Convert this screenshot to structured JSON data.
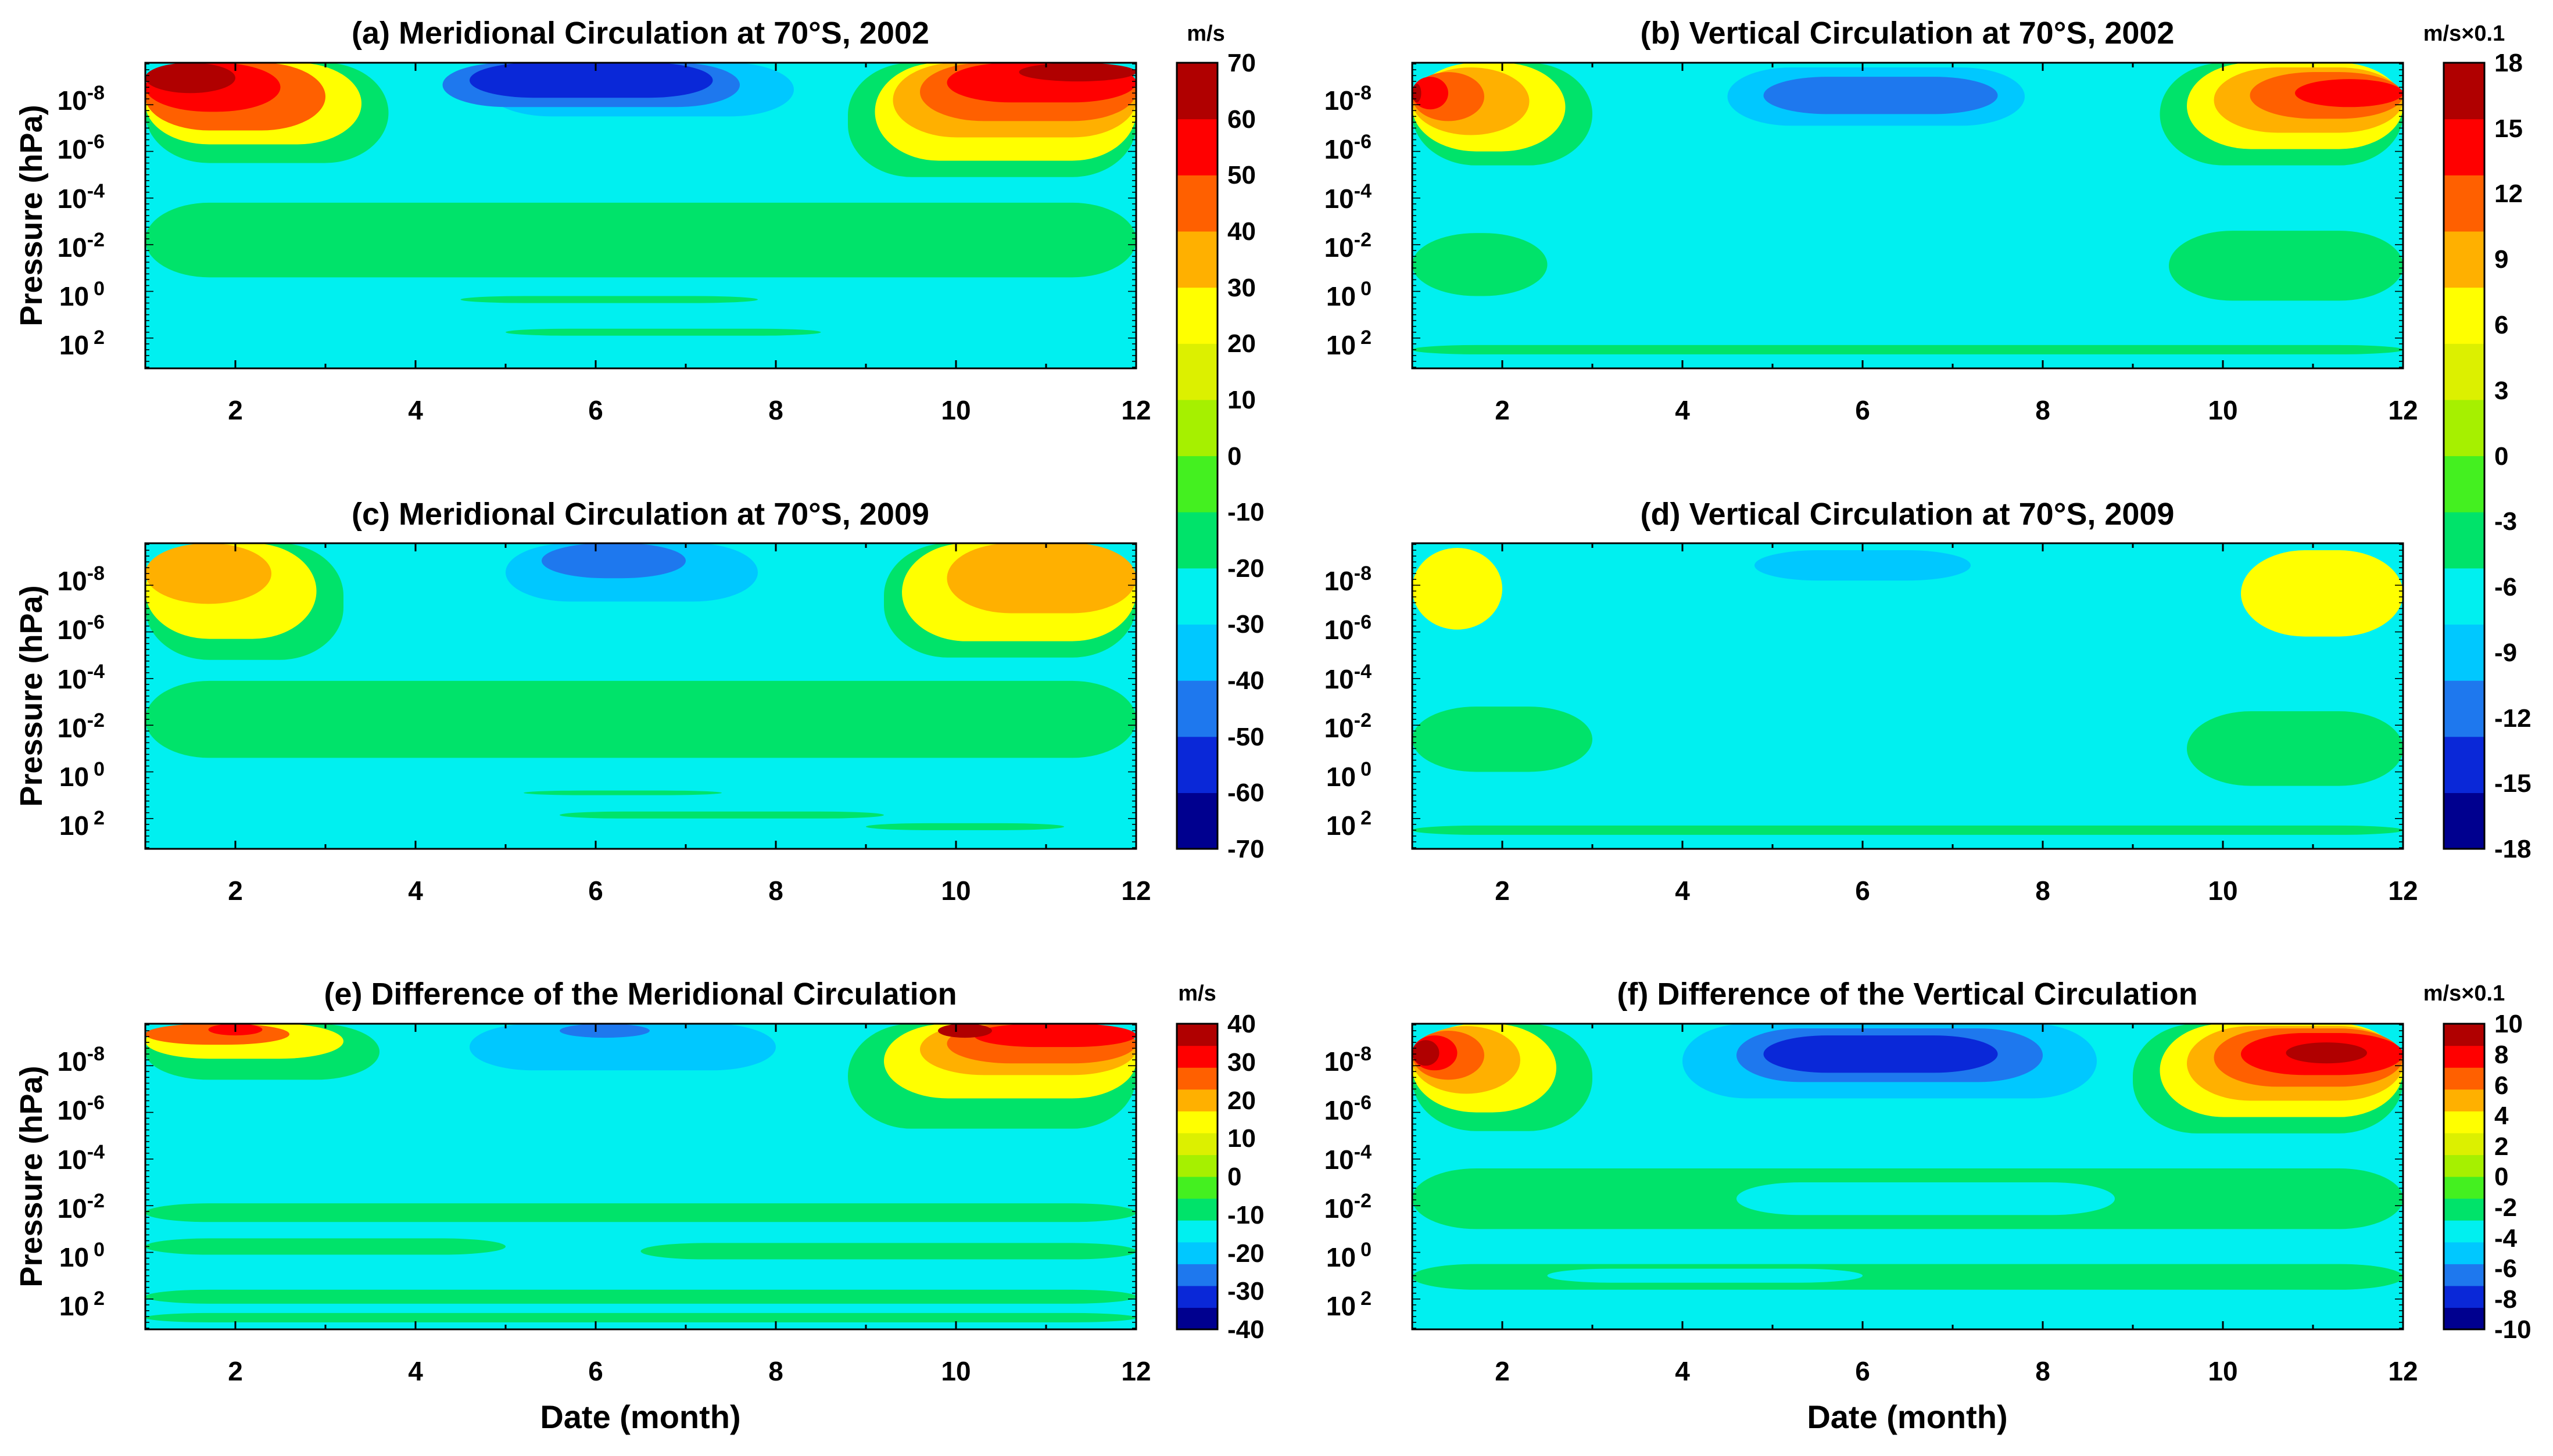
{
  "chart_data": [
    {
      "id": "a",
      "type": "contour",
      "title": "(a) Meridional Circulation at 70°S, 2002",
      "xlabel": "",
      "ylabel": "Pressure (hPa)",
      "x_ticks": [
        "2",
        "4",
        "6",
        "8",
        "10",
        "12"
      ],
      "y_ticks": [
        [
          "10",
          "-8"
        ],
        [
          "10",
          "-6"
        ],
        [
          "10",
          "-4"
        ],
        [
          "10",
          "-2"
        ],
        [
          "10",
          "0"
        ],
        [
          "10",
          "2"
        ]
      ],
      "xlim": [
        1,
        12
      ],
      "colorbar": "cb_meridional",
      "regions": [
        {
          "x0": 1.0,
          "x1": 3.7,
          "y0": -9.8,
          "y1": -5.5,
          "level": 5
        },
        {
          "x0": 1.0,
          "x1": 3.4,
          "y0": -9.8,
          "y1": -6.3,
          "level": 9
        },
        {
          "x0": 1.0,
          "x1": 3.0,
          "y0": -9.8,
          "y1": -6.9,
          "level": 11
        },
        {
          "x0": 1.0,
          "x1": 2.5,
          "y0": -9.8,
          "y1": -7.7,
          "level": 12
        },
        {
          "x0": 1.0,
          "x1": 2.0,
          "y0": -9.8,
          "y1": -8.5,
          "level": 13
        },
        {
          "x0": 4.8,
          "x1": 8.2,
          "y0": -9.8,
          "y1": -7.5,
          "level": 3
        },
        {
          "x0": 4.3,
          "x1": 7.6,
          "y0": -9.8,
          "y1": -7.9,
          "level": 2
        },
        {
          "x0": 4.6,
          "x1": 7.3,
          "y0": -9.8,
          "y1": -8.3,
          "level": 1
        },
        {
          "x0": 8.8,
          "x1": 12.0,
          "y0": -9.8,
          "y1": -4.9,
          "level": 5
        },
        {
          "x0": 9.1,
          "x1": 12.0,
          "y0": -9.8,
          "y1": -5.6,
          "level": 9
        },
        {
          "x0": 9.3,
          "x1": 12.0,
          "y0": -9.8,
          "y1": -6.6,
          "level": 10
        },
        {
          "x0": 9.6,
          "x1": 12.0,
          "y0": -9.8,
          "y1": -7.3,
          "level": 11
        },
        {
          "x0": 9.9,
          "x1": 12.0,
          "y0": -9.8,
          "y1": -8.1,
          "level": 12
        },
        {
          "x0": 10.7,
          "x1": 12.0,
          "y0": -9.8,
          "y1": -9.0,
          "level": 13
        },
        {
          "x0": 1.0,
          "x1": 12.0,
          "y0": -3.8,
          "y1": -0.6,
          "level": 5
        },
        {
          "x0": 4.5,
          "x1": 7.8,
          "y0": 0.2,
          "y1": 0.5,
          "level": 5
        },
        {
          "x0": 5.0,
          "x1": 8.5,
          "y0": 1.6,
          "y1": 1.9,
          "level": 5
        }
      ]
    },
    {
      "id": "b",
      "type": "contour",
      "title": "(b) Vertical Circulation at 70°S, 2002",
      "xlabel": "",
      "ylabel": "",
      "x_ticks": [
        "2",
        "4",
        "6",
        "8",
        "10",
        "12"
      ],
      "y_ticks": [
        [
          "10",
          "-8"
        ],
        [
          "10",
          "-6"
        ],
        [
          "10",
          "-4"
        ],
        [
          "10",
          "-2"
        ],
        [
          "10",
          "0"
        ],
        [
          "10",
          "2"
        ]
      ],
      "xlim": [
        1,
        12
      ],
      "colorbar": "cb_vertical",
      "regions": [
        {
          "x0": 1.0,
          "x1": 3.0,
          "y0": -9.8,
          "y1": -5.4,
          "level": 5
        },
        {
          "x0": 1.0,
          "x1": 2.7,
          "y0": -9.8,
          "y1": -6.0,
          "level": 9
        },
        {
          "x0": 1.0,
          "x1": 2.3,
          "y0": -9.6,
          "y1": -6.7,
          "level": 10
        },
        {
          "x0": 1.0,
          "x1": 1.8,
          "y0": -9.4,
          "y1": -7.3,
          "level": 11
        },
        {
          "x0": 1.0,
          "x1": 1.4,
          "y0": -9.2,
          "y1": -7.8,
          "level": 12
        },
        {
          "x0": 1.0,
          "x1": 1.1,
          "y0": -8.9,
          "y1": -8.1,
          "level": 13
        },
        {
          "x0": 3.2,
          "x1": 9.0,
          "y0": -9.8,
          "y1": -4.6,
          "level": 4
        },
        {
          "x0": 4.5,
          "x1": 7.8,
          "y0": -9.6,
          "y1": -7.1,
          "level": 3
        },
        {
          "x0": 4.9,
          "x1": 7.5,
          "y0": -9.2,
          "y1": -7.6,
          "level": 2
        },
        {
          "x0": 9.3,
          "x1": 12.0,
          "y0": -9.8,
          "y1": -5.4,
          "level": 5
        },
        {
          "x0": 9.6,
          "x1": 12.0,
          "y0": -9.8,
          "y1": -6.1,
          "level": 9
        },
        {
          "x0": 9.9,
          "x1": 12.0,
          "y0": -9.6,
          "y1": -6.8,
          "level": 10
        },
        {
          "x0": 10.3,
          "x1": 12.0,
          "y0": -9.4,
          "y1": -7.4,
          "level": 11
        },
        {
          "x0": 10.8,
          "x1": 12.0,
          "y0": -9.1,
          "y1": -7.9,
          "level": 12
        },
        {
          "x0": 1.0,
          "x1": 12.0,
          "y0": -4.2,
          "y1": -2.4,
          "level": 4
        },
        {
          "x0": 1.0,
          "x1": 2.5,
          "y0": -2.5,
          "y1": 0.2,
          "level": 5
        },
        {
          "x0": 9.4,
          "x1": 12.0,
          "y0": -2.6,
          "y1": 0.4,
          "level": 5
        },
        {
          "x0": 1.0,
          "x1": 12.0,
          "y0": 2.3,
          "y1": 2.7,
          "level": 5
        }
      ]
    },
    {
      "id": "c",
      "type": "contour",
      "title": "(c) Meridional Circulation at 70°S, 2009",
      "xlabel": "",
      "ylabel": "Pressure (hPa)",
      "x_ticks": [
        "2",
        "4",
        "6",
        "8",
        "10",
        "12"
      ],
      "y_ticks": [
        [
          "10",
          "-8"
        ],
        [
          "10",
          "-6"
        ],
        [
          "10",
          "-4"
        ],
        [
          "10",
          "-2"
        ],
        [
          "10",
          "0"
        ],
        [
          "10",
          "2"
        ]
      ],
      "xlim": [
        1,
        12
      ],
      "colorbar": "cb_meridional",
      "regions": [
        {
          "x0": 1.0,
          "x1": 3.2,
          "y0": -9.8,
          "y1": -4.8,
          "level": 5
        },
        {
          "x0": 1.0,
          "x1": 2.9,
          "y0": -9.8,
          "y1": -5.7,
          "level": 9
        },
        {
          "x0": 1.0,
          "x1": 2.4,
          "y0": -9.8,
          "y1": -7.2,
          "level": 10
        },
        {
          "x0": 4.6,
          "x1": 8.2,
          "y0": -9.8,
          "y1": -6.4,
          "level": 4
        },
        {
          "x0": 5.0,
          "x1": 7.8,
          "y0": -9.8,
          "y1": -7.3,
          "level": 3
        },
        {
          "x0": 5.4,
          "x1": 7.0,
          "y0": -9.8,
          "y1": -8.3,
          "level": 2
        },
        {
          "x0": 9.2,
          "x1": 12.0,
          "y0": -9.8,
          "y1": -4.9,
          "level": 5
        },
        {
          "x0": 9.4,
          "x1": 12.0,
          "y0": -9.8,
          "y1": -5.6,
          "level": 9
        },
        {
          "x0": 9.9,
          "x1": 12.0,
          "y0": -9.8,
          "y1": -6.8,
          "level": 10
        },
        {
          "x0": 1.0,
          "x1": 12.0,
          "y0": -3.9,
          "y1": -0.6,
          "level": 5
        },
        {
          "x0": 5.2,
          "x1": 7.4,
          "y0": 0.8,
          "y1": 1.0,
          "level": 5
        },
        {
          "x0": 5.6,
          "x1": 9.2,
          "y0": 1.7,
          "y1": 2.0,
          "level": 5
        },
        {
          "x0": 9.0,
          "x1": 11.2,
          "y0": 2.2,
          "y1": 2.5,
          "level": 5
        }
      ]
    },
    {
      "id": "d",
      "type": "contour",
      "title": "(d) Vertical Circulation at 70°S, 2009",
      "xlabel": "",
      "ylabel": "",
      "x_ticks": [
        "2",
        "4",
        "6",
        "8",
        "10",
        "12"
      ],
      "y_ticks": [
        [
          "10",
          "-8"
        ],
        [
          "10",
          "-6"
        ],
        [
          "10",
          "-4"
        ],
        [
          "10",
          "-2"
        ],
        [
          "10",
          "0"
        ],
        [
          "10",
          "2"
        ]
      ],
      "xlim": [
        1,
        12
      ],
      "colorbar": "cb_vertical",
      "regions": [
        {
          "x0": 1.0,
          "x1": 2.0,
          "y0": -9.6,
          "y1": -6.1,
          "level": 9
        },
        {
          "x0": 3.4,
          "x1": 9.1,
          "y0": -9.8,
          "y1": -4.8,
          "level": 4
        },
        {
          "x0": 4.8,
          "x1": 7.2,
          "y0": -9.5,
          "y1": -8.2,
          "level": 3
        },
        {
          "x0": 10.2,
          "x1": 12.0,
          "y0": -9.5,
          "y1": -5.8,
          "level": 9
        },
        {
          "x0": 1.0,
          "x1": 12.0,
          "y0": -4.1,
          "y1": -2.6,
          "level": 4
        },
        {
          "x0": 1.0,
          "x1": 3.0,
          "y0": -2.8,
          "y1": 0.0,
          "level": 5
        },
        {
          "x0": 9.6,
          "x1": 12.0,
          "y0": -2.6,
          "y1": 0.6,
          "level": 5
        },
        {
          "x0": 1.0,
          "x1": 12.0,
          "y0": 2.3,
          "y1": 2.7,
          "level": 5
        }
      ]
    },
    {
      "id": "e",
      "type": "contour",
      "title": "(e) Difference of the Meridional Circulation",
      "xlabel": "Date (month)",
      "ylabel": "Pressure (hPa)",
      "x_ticks": [
        "2",
        "4",
        "6",
        "8",
        "10",
        "12"
      ],
      "y_ticks": [
        [
          "10",
          "-8"
        ],
        [
          "10",
          "-6"
        ],
        [
          "10",
          "-4"
        ],
        [
          "10",
          "-2"
        ],
        [
          "10",
          "0"
        ],
        [
          "10",
          "2"
        ]
      ],
      "xlim": [
        1,
        12
      ],
      "colorbar": "cb_difference_meridional",
      "regions": [
        {
          "x0": 1.0,
          "x1": 3.6,
          "y0": -9.8,
          "y1": -7.4,
          "level": 5
        },
        {
          "x0": 1.0,
          "x1": 3.2,
          "y0": -9.8,
          "y1": -8.3,
          "level": 9
        },
        {
          "x0": 1.0,
          "x1": 2.6,
          "y0": -9.8,
          "y1": -8.9,
          "level": 11
        },
        {
          "x0": 1.7,
          "x1": 2.3,
          "y0": -9.8,
          "y1": -9.3,
          "level": 12
        },
        {
          "x0": 4.5,
          "x1": 9.0,
          "y0": -9.8,
          "y1": -6.3,
          "level": 4
        },
        {
          "x0": 4.6,
          "x1": 8.0,
          "y0": -9.8,
          "y1": -7.8,
          "level": 3
        },
        {
          "x0": 5.6,
          "x1": 6.6,
          "y0": -9.8,
          "y1": -9.2,
          "level": 2
        },
        {
          "x0": 8.8,
          "x1": 12.0,
          "y0": -9.8,
          "y1": -5.3,
          "level": 5
        },
        {
          "x0": 9.2,
          "x1": 12.0,
          "y0": -9.8,
          "y1": -6.6,
          "level": 9
        },
        {
          "x0": 9.6,
          "x1": 12.0,
          "y0": -9.8,
          "y1": -7.6,
          "level": 10
        },
        {
          "x0": 9.9,
          "x1": 12.0,
          "y0": -9.8,
          "y1": -8.1,
          "level": 11
        },
        {
          "x0": 10.2,
          "x1": 12.0,
          "y0": -9.8,
          "y1": -8.8,
          "level": 12
        },
        {
          "x0": 9.8,
          "x1": 10.4,
          "y0": -9.8,
          "y1": -9.2,
          "level": 13
        },
        {
          "x0": 1.0,
          "x1": 12.0,
          "y0": -4.3,
          "y1": 3.3,
          "level": 4
        },
        {
          "x0": 1.0,
          "x1": 12.0,
          "y0": -2.1,
          "y1": -1.3,
          "level": 5
        },
        {
          "x0": 1.0,
          "x1": 5.0,
          "y0": -0.6,
          "y1": 0.1,
          "level": 5
        },
        {
          "x0": 6.5,
          "x1": 12.0,
          "y0": -0.4,
          "y1": 0.3,
          "level": 5
        },
        {
          "x0": 1.0,
          "x1": 12.0,
          "y0": 1.6,
          "y1": 2.2,
          "level": 5
        },
        {
          "x0": 1.0,
          "x1": 12.0,
          "y0": 2.6,
          "y1": 3.0,
          "level": 5
        }
      ]
    },
    {
      "id": "f",
      "type": "contour",
      "title": "(f) Difference of the Vertical Circulation",
      "xlabel": "Date (month)",
      "ylabel": "",
      "x_ticks": [
        "2",
        "4",
        "6",
        "8",
        "10",
        "12"
      ],
      "y_ticks": [
        [
          "10",
          "-8"
        ],
        [
          "10",
          "-6"
        ],
        [
          "10",
          "-4"
        ],
        [
          "10",
          "-2"
        ],
        [
          "10",
          "0"
        ],
        [
          "10",
          "2"
        ]
      ],
      "xlim": [
        1,
        12
      ],
      "colorbar": "cb_difference_vertical",
      "regions": [
        {
          "x0": 1.0,
          "x1": 3.0,
          "y0": -9.8,
          "y1": -5.2,
          "level": 5
        },
        {
          "x0": 1.0,
          "x1": 2.6,
          "y0": -9.8,
          "y1": -6.0,
          "level": 9
        },
        {
          "x0": 1.0,
          "x1": 2.2,
          "y0": -9.7,
          "y1": -6.8,
          "level": 10
        },
        {
          "x0": 1.0,
          "x1": 1.8,
          "y0": -9.5,
          "y1": -7.4,
          "level": 11
        },
        {
          "x0": 1.0,
          "x1": 1.5,
          "y0": -9.3,
          "y1": -7.8,
          "level": 12
        },
        {
          "x0": 1.0,
          "x1": 1.3,
          "y0": -9.1,
          "y1": -8.0,
          "level": 13
        },
        {
          "x0": 3.0,
          "x1": 9.2,
          "y0": -9.8,
          "y1": -4.6,
          "level": 4
        },
        {
          "x0": 4.0,
          "x1": 8.6,
          "y0": -9.8,
          "y1": -6.6,
          "level": 3
        },
        {
          "x0": 4.6,
          "x1": 8.0,
          "y0": -9.6,
          "y1": -7.3,
          "level": 2
        },
        {
          "x0": 4.9,
          "x1": 7.5,
          "y0": -9.3,
          "y1": -7.7,
          "level": 1
        },
        {
          "x0": 9.0,
          "x1": 12.0,
          "y0": -9.8,
          "y1": -5.1,
          "level": 5
        },
        {
          "x0": 9.3,
          "x1": 12.0,
          "y0": -9.8,
          "y1": -5.8,
          "level": 9
        },
        {
          "x0": 9.6,
          "x1": 12.0,
          "y0": -9.7,
          "y1": -6.5,
          "level": 10
        },
        {
          "x0": 9.9,
          "x1": 12.0,
          "y0": -9.6,
          "y1": -7.1,
          "level": 11
        },
        {
          "x0": 10.2,
          "x1": 12.0,
          "y0": -9.4,
          "y1": -7.6,
          "level": 12
        },
        {
          "x0": 10.7,
          "x1": 11.6,
          "y0": -9.0,
          "y1": -8.1,
          "level": 13
        },
        {
          "x0": 1.0,
          "x1": 12.0,
          "y0": -3.6,
          "y1": -1.0,
          "level": 5
        },
        {
          "x0": 4.6,
          "x1": 8.8,
          "y0": -3.0,
          "y1": -1.6,
          "level": 4
        },
        {
          "x0": 1.0,
          "x1": 12.0,
          "y0": 0.5,
          "y1": 1.6,
          "level": 5
        },
        {
          "x0": 2.5,
          "x1": 6.0,
          "y0": 0.7,
          "y1": 1.3,
          "level": 4
        }
      ]
    }
  ],
  "colorbars": {
    "cb_meridional": {
      "unit": "m/s",
      "min": -70,
      "max": 70,
      "tick_labels": [
        "70",
        "60",
        "50",
        "40",
        "30",
        "20",
        "10",
        "0",
        "-10",
        "-20",
        "-30",
        "-40",
        "-50",
        "-60",
        "-70"
      ]
    },
    "cb_vertical": {
      "unit": "m/s×0.1",
      "min": -18,
      "max": 18,
      "tick_labels": [
        "18",
        "15",
        "12",
        "9",
        "6",
        "3",
        "0",
        "-3",
        "-6",
        "-9",
        "-12",
        "-15",
        "-18"
      ]
    },
    "cb_difference_meridional": {
      "unit": "m/s",
      "min": -40,
      "max": 40,
      "tick_labels": [
        "40",
        "30",
        "20",
        "10",
        "0",
        "-10",
        "-20",
        "-30",
        "-40"
      ]
    },
    "cb_difference_vertical": {
      "unit": "m/s×0.1",
      "min": -10,
      "max": 10,
      "tick_labels": [
        "10",
        "8",
        "6",
        "4",
        "2",
        "0",
        "-2",
        "-4",
        "-6",
        "-8",
        "-10"
      ]
    }
  },
  "colormap": [
    "#00008f",
    "#0a28d8",
    "#1e78ee",
    "#00c8ff",
    "#00f0f0",
    "#00e36a",
    "#44f020",
    "#a6f000",
    "#dcf000",
    "#ffff00",
    "#ffb000",
    "#ff6000",
    "#ff0000",
    "#b00000"
  ]
}
